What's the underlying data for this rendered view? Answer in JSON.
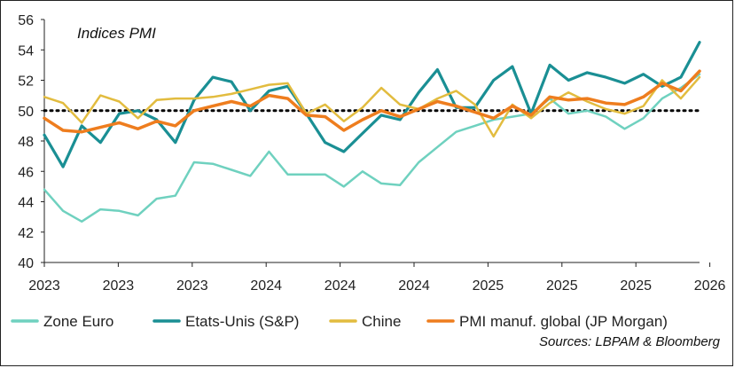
{
  "chart_data": {
    "type": "line",
    "title": "Indices PMI",
    "source": "Sources: LBPAM & Bloomberg",
    "ylim": [
      40,
      56
    ],
    "y_ticks": [
      40,
      42,
      44,
      46,
      48,
      50,
      52,
      54,
      56
    ],
    "reference_line": 50,
    "grid": false,
    "legend_position": "bottom",
    "x_tick_labels": [
      "2023",
      "2023",
      "2023",
      "2024",
      "2024",
      "2024",
      "2025",
      "2025",
      "2025",
      "2026"
    ],
    "series": [
      {
        "name": "Zone Euro",
        "color": "#6fd1bf",
        "values": [
          44.8,
          43.4,
          42.7,
          43.5,
          43.4,
          43.1,
          44.2,
          44.4,
          46.6,
          46.5,
          46.1,
          45.7,
          47.3,
          45.8,
          45.8,
          45.8,
          45.0,
          46.0,
          45.2,
          45.1,
          46.6,
          47.6,
          48.6,
          49.0,
          49.4,
          49.6,
          49.8,
          50.8,
          49.8,
          50.0,
          49.6,
          48.8,
          49.5,
          50.8,
          51.5,
          52.4
        ]
      },
      {
        "name": "Etats-Unis (S&P)",
        "color": "#1a8f94",
        "values": [
          48.4,
          46.3,
          49.0,
          47.9,
          49.8,
          50.0,
          49.4,
          47.9,
          50.7,
          52.2,
          51.9,
          50.0,
          51.3,
          51.6,
          49.8,
          47.9,
          47.3,
          48.5,
          49.7,
          49.4,
          51.2,
          52.7,
          50.2,
          50.2,
          52.0,
          52.9,
          49.8,
          53.0,
          52.0,
          52.5,
          52.2,
          51.8,
          52.4,
          51.6,
          52.2,
          54.5
        ]
      },
      {
        "name": "Chine",
        "color": "#e2bc3f",
        "values": [
          50.9,
          50.5,
          49.2,
          51.0,
          50.6,
          49.5,
          50.7,
          50.8,
          50.8,
          50.9,
          51.1,
          51.4,
          51.7,
          51.8,
          49.8,
          50.4,
          49.3,
          50.2,
          51.5,
          50.4,
          50.1,
          50.8,
          51.3,
          50.4,
          48.3,
          50.4,
          49.5,
          50.5,
          51.2,
          50.6,
          50.1,
          49.8,
          50.3,
          52.0,
          50.8,
          52.2
        ]
      },
      {
        "name": "PMI manuf. global (JP Morgan)",
        "color": "#ee7d1e",
        "values": [
          49.5,
          48.7,
          48.6,
          48.9,
          49.2,
          48.8,
          49.3,
          49.0,
          50.0,
          50.3,
          50.6,
          50.3,
          51.0,
          50.8,
          49.7,
          49.6,
          48.7,
          49.4,
          50.0,
          49.6,
          50.1,
          50.6,
          50.3,
          49.9,
          49.5,
          50.3,
          49.7,
          50.9,
          50.7,
          50.8,
          50.5,
          50.4,
          50.9,
          51.8,
          51.3,
          52.6
        ]
      }
    ]
  }
}
